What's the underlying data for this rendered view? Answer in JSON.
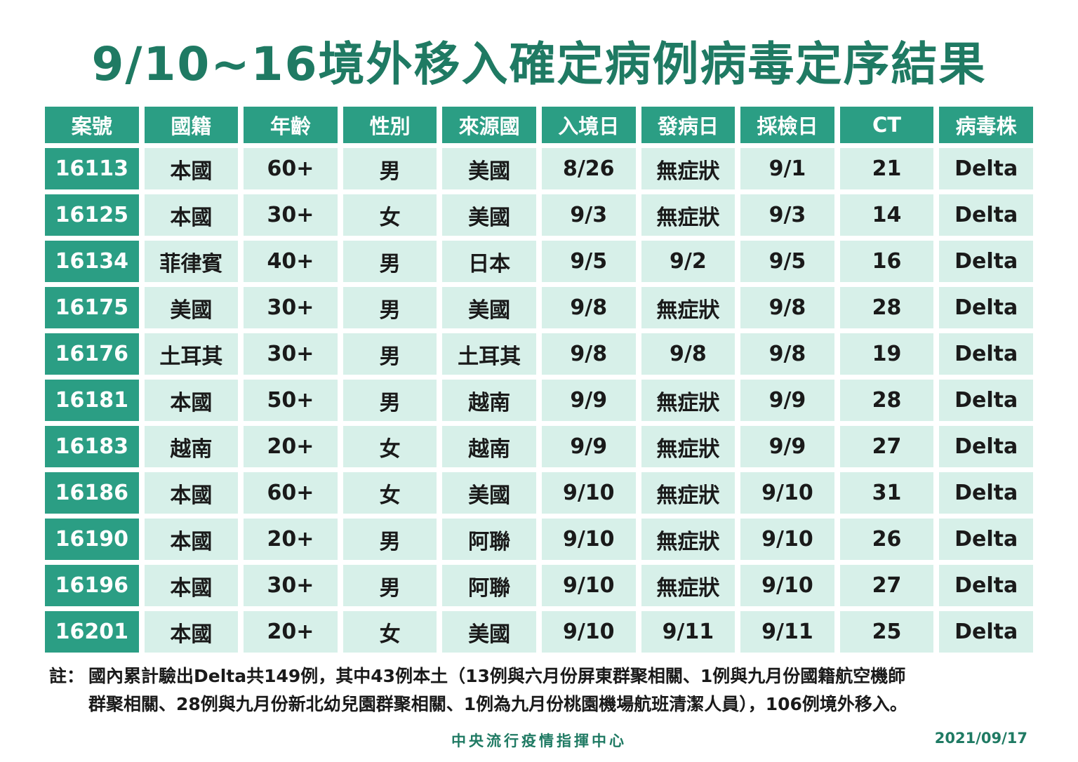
{
  "title": "9/10~16境外移入確定病例病毒定序結果",
  "table": {
    "headers": [
      "案號",
      "國籍",
      "年齡",
      "性別",
      "來源國",
      "入境日",
      "發病日",
      "採檢日",
      "CT",
      "病毒株"
    ],
    "rows": [
      [
        "16113",
        "本國",
        "60+",
        "男",
        "美國",
        "8/26",
        "無症狀",
        "9/1",
        "21",
        "Delta"
      ],
      [
        "16125",
        "本國",
        "30+",
        "女",
        "美國",
        "9/3",
        "無症狀",
        "9/3",
        "14",
        "Delta"
      ],
      [
        "16134",
        "菲律賓",
        "40+",
        "男",
        "日本",
        "9/5",
        "9/2",
        "9/5",
        "16",
        "Delta"
      ],
      [
        "16175",
        "美國",
        "30+",
        "男",
        "美國",
        "9/8",
        "無症狀",
        "9/8",
        "28",
        "Delta"
      ],
      [
        "16176",
        "土耳其",
        "30+",
        "男",
        "土耳其",
        "9/8",
        "9/8",
        "9/8",
        "19",
        "Delta"
      ],
      [
        "16181",
        "本國",
        "50+",
        "男",
        "越南",
        "9/9",
        "無症狀",
        "9/9",
        "28",
        "Delta"
      ],
      [
        "16183",
        "越南",
        "20+",
        "女",
        "越南",
        "9/9",
        "無症狀",
        "9/9",
        "27",
        "Delta"
      ],
      [
        "16186",
        "本國",
        "60+",
        "女",
        "美國",
        "9/10",
        "無症狀",
        "9/10",
        "31",
        "Delta"
      ],
      [
        "16190",
        "本國",
        "20+",
        "男",
        "阿聯",
        "9/10",
        "無症狀",
        "9/10",
        "26",
        "Delta"
      ],
      [
        "16196",
        "本國",
        "30+",
        "男",
        "阿聯",
        "9/10",
        "無症狀",
        "9/10",
        "27",
        "Delta"
      ],
      [
        "16201",
        "本國",
        "20+",
        "女",
        "美國",
        "9/10",
        "9/11",
        "9/11",
        "25",
        "Delta"
      ]
    ]
  },
  "note": {
    "prefix": "註：",
    "line1": "國內累計驗出Delta共149例，其中43例本土（13例與六月份屏東群聚相關、1例與九月份國籍航空機師",
    "line2": "群聚相關、28例與九月份新北幼兒園群聚相關、1例為九月份桃園機場航班清潔人員），106例境外移入。"
  },
  "footer": {
    "org": "中央流行疫情指揮中心",
    "date": "2021/09/17"
  },
  "colors": {
    "title": "#1f7a63",
    "header_bg": "#2b9e84",
    "cell_bg": "#d7f0e9"
  }
}
